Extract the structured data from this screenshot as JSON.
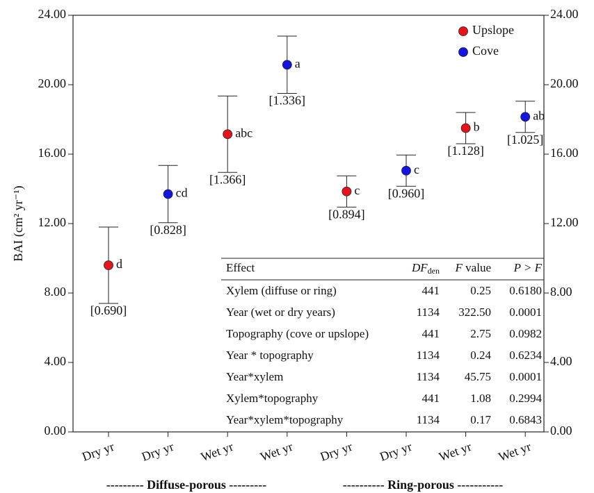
{
  "chart_data": {
    "type": "scatter",
    "y_label": "BAI (cm² yr⁻¹)",
    "categories": [
      "Dry yr",
      "Dry yr",
      "Wet yr",
      "Wet yr",
      "Dry yr",
      "Dry yr",
      "Wet yr",
      "Wet yr"
    ],
    "series": [
      {
        "name": "Upslope",
        "color": "#e8121a",
        "values": [
          9.6,
          null,
          17.15,
          null,
          13.85,
          null,
          17.5,
          null
        ],
        "errors": [
          2.2,
          null,
          2.2,
          null,
          0.9,
          null,
          0.9,
          null
        ]
      },
      {
        "name": "Cove",
        "color": "#1414e0",
        "values": [
          null,
          13.7,
          null,
          21.15,
          null,
          15.05,
          null,
          18.15
        ],
        "errors": [
          null,
          1.65,
          null,
          1.65,
          null,
          0.9,
          null,
          0.9
        ]
      }
    ],
    "letters": [
      "d",
      "cd",
      "abc",
      "a",
      "c",
      "c",
      "b",
      "ab"
    ],
    "se_labels": [
      "[0.690]",
      "[0.828]",
      "[1.366]",
      "[1.336]",
      "[0.894]",
      "[0.960]",
      "[1.128]",
      "[1.025]"
    ],
    "ylim": [
      0,
      24
    ],
    "yticks": [
      {
        "value": 0,
        "label": "0.00"
      },
      {
        "value": 4,
        "label": "4.00"
      },
      {
        "value": 8,
        "label": "8.00"
      },
      {
        "value": 12,
        "label": "12.00"
      },
      {
        "value": 16,
        "label": "16.00"
      },
      {
        "value": 20,
        "label": "20.00"
      },
      {
        "value": 24,
        "label": "24.00"
      }
    ],
    "y2lim": [
      0,
      24
    ],
    "y2ticks": [
      {
        "value": 0,
        "label": "0.00"
      },
      {
        "value": 4,
        "label": "4.00"
      },
      {
        "value": 8,
        "label": "8.00"
      },
      {
        "value": 12,
        "label": "12.00"
      },
      {
        "value": 16,
        "label": "16.00"
      },
      {
        "value": 20,
        "label": "20.00"
      },
      {
        "value": 24,
        "label": "24.00"
      }
    ],
    "legend": "top-right",
    "groups": [
      "--------- Diffuse-porous ---------",
      "---------- Ring-porous -----------"
    ],
    "table": {
      "header": [
        {
          "text": "Effect"
        },
        {
          "text": "DF",
          "sub": "den"
        },
        {
          "text": "F",
          "rest": " value"
        },
        {
          "text": "P > F"
        }
      ],
      "rows": [
        [
          "Xylem (diffuse or ring)",
          "441",
          "0.25",
          "0.6180"
        ],
        [
          "Year (wet or dry years)",
          "1134",
          "322.50",
          "0.0001"
        ],
        [
          "Topography (cove or upslope)",
          "441",
          "2.75",
          "0.0982"
        ],
        [
          "Year * topography",
          "1134",
          "0.24",
          "0.6234"
        ],
        [
          "Year*xylem",
          "1134",
          "45.75",
          "0.0001"
        ],
        [
          "Xylem*topography",
          "441",
          "1.08",
          "0.2994"
        ],
        [
          "Year*xylem*topography",
          "1134",
          "0.17",
          "0.6843"
        ]
      ]
    }
  }
}
